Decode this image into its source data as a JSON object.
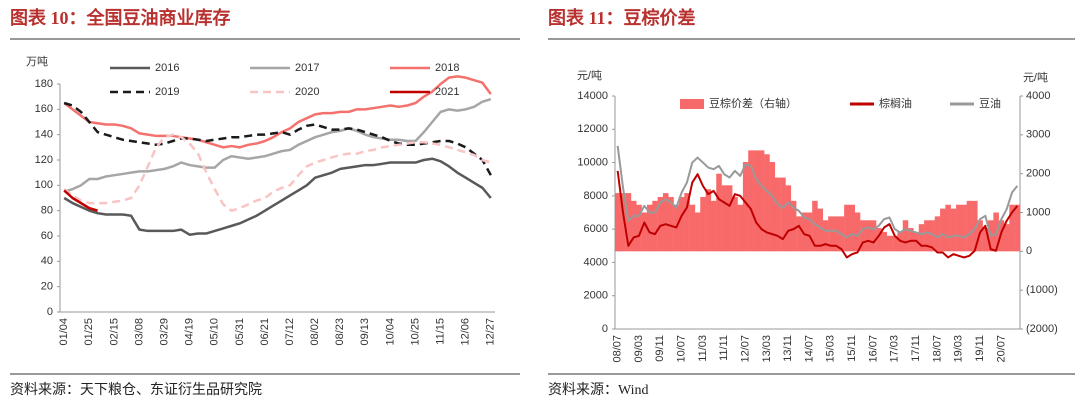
{
  "chart_data": [
    {
      "type": "line",
      "title": "图表 10：全国豆油商业库存",
      "y_label": "万吨",
      "source": "资料来源：天下粮仓、东证衍生品研究院",
      "categories": [
        "01/04",
        null,
        null,
        "01/25",
        null,
        null,
        "02/15",
        null,
        null,
        "03/08",
        null,
        null,
        "03/29",
        null,
        null,
        "04/19",
        null,
        null,
        "05/10",
        null,
        null,
        "05/31",
        null,
        null,
        "06/21",
        null,
        null,
        "07/12",
        null,
        null,
        "08/02",
        null,
        null,
        "08/23",
        null,
        null,
        "09/13",
        null,
        null,
        "10/04",
        null,
        null,
        "10/25",
        null,
        null,
        "11/15",
        null,
        null,
        "12/06",
        null,
        null,
        "12/27"
      ],
      "ylim": [
        0,
        180
      ],
      "yticks": [
        0,
        20,
        40,
        60,
        80,
        100,
        120,
        140,
        160,
        180
      ],
      "grid": false,
      "series": [
        {
          "name": "2016",
          "color": "#595959",
          "dash": false,
          "values": [
            90,
            86,
            83,
            80,
            78,
            77,
            77,
            77,
            76,
            65,
            64,
            64,
            64,
            64,
            65,
            61,
            62,
            62,
            64,
            66,
            68,
            70,
            73,
            76,
            80,
            84,
            88,
            92,
            96,
            100,
            106,
            108,
            110,
            113,
            114,
            115,
            116,
            116,
            117,
            118,
            118,
            118,
            118,
            120,
            121,
            119,
            115,
            110,
            106,
            102,
            98,
            90
          ]
        },
        {
          "name": "2017",
          "color": "#a6a6a6",
          "dash": false,
          "values": [
            95,
            97,
            100,
            105,
            105,
            107,
            108,
            109,
            110,
            111,
            111,
            112,
            113,
            115,
            118,
            116,
            115,
            114,
            114,
            120,
            123,
            122,
            121,
            122,
            123,
            125,
            127,
            128,
            132,
            135,
            138,
            140,
            142,
            143,
            145,
            143,
            140,
            138,
            137,
            136,
            136,
            135,
            135,
            142,
            150,
            158,
            160,
            159,
            160,
            162,
            166,
            168
          ]
        },
        {
          "name": "2018",
          "color": "#f4716d",
          "dash": false,
          "values": [
            165,
            160,
            155,
            150,
            149,
            148,
            148,
            147,
            145,
            141,
            140,
            139,
            139,
            139,
            138,
            137,
            136,
            134,
            132,
            130,
            131,
            130,
            132,
            133,
            135,
            138,
            142,
            145,
            150,
            153,
            156,
            157,
            157,
            158,
            158,
            160,
            160,
            161,
            162,
            163,
            162,
            163,
            165,
            170,
            174,
            180,
            185,
            186,
            185,
            183,
            181,
            172
          ]
        },
        {
          "name": "2019",
          "color": "#1a1a1a",
          "dash": true,
          "values": [
            165,
            163,
            158,
            150,
            142,
            140,
            138,
            136,
            135,
            134,
            133,
            132,
            133,
            135,
            137,
            137,
            136,
            135,
            136,
            137,
            138,
            138,
            139,
            140,
            140,
            141,
            142,
            140,
            144,
            147,
            148,
            146,
            144,
            144,
            145,
            144,
            142,
            140,
            138,
            135,
            133,
            132,
            132,
            133,
            134,
            135,
            135,
            133,
            130,
            125,
            120,
            108
          ]
        },
        {
          "name": "2020",
          "color": "#f8c4c4",
          "dash": true,
          "values": [
            97,
            92,
            88,
            86,
            86,
            86,
            87,
            88,
            90,
            100,
            115,
            130,
            138,
            140,
            138,
            133,
            125,
            110,
            97,
            85,
            80,
            82,
            85,
            88,
            90,
            95,
            98,
            100,
            108,
            115,
            118,
            120,
            122,
            124,
            125,
            125,
            127,
            128,
            130,
            131,
            132,
            133,
            134,
            134,
            133,
            132,
            130,
            128,
            126,
            124,
            120,
            118
          ]
        },
        {
          "name": "2021",
          "color": "#c00000",
          "dash": false,
          "values": [
            96,
            90,
            86,
            82,
            80,
            null,
            null,
            null,
            null,
            null,
            null,
            null,
            null,
            null,
            null,
            null,
            null,
            null,
            null,
            null,
            null,
            null,
            null,
            null,
            null,
            null,
            null,
            null,
            null,
            null,
            null,
            null,
            null,
            null,
            null,
            null,
            null,
            null,
            null,
            null,
            null,
            null,
            null,
            null,
            null,
            null,
            null,
            null,
            null,
            null,
            null,
            null
          ]
        }
      ]
    },
    {
      "type": "combo",
      "title": "图表 11：豆棕价差",
      "y_label": "元/吨",
      "y2_label": "元/吨",
      "source": "资料来源：Wind",
      "categories": [
        "08/07",
        null,
        null,
        null,
        "09/03",
        null,
        null,
        null,
        "09/11",
        null,
        null,
        null,
        "10/07",
        null,
        null,
        null,
        "11/03",
        null,
        null,
        null,
        "11/11",
        null,
        null,
        null,
        "12/07",
        null,
        null,
        null,
        "13/03",
        null,
        null,
        null,
        "13/11",
        null,
        null,
        null,
        "14/07",
        null,
        null,
        null,
        "15/03",
        null,
        null,
        null,
        "15/11",
        null,
        null,
        null,
        "16/07",
        null,
        null,
        null,
        "17/03",
        null,
        null,
        null,
        "17/11",
        null,
        null,
        null,
        "18/07",
        null,
        null,
        null,
        "19/03",
        null,
        null,
        null,
        "19/11",
        null,
        null,
        null,
        "20/07",
        null,
        null,
        null
      ],
      "ylim": [
        0,
        14000
      ],
      "yticks": [
        0,
        2000,
        4000,
        6000,
        8000,
        10000,
        12000,
        14000
      ],
      "y2lim": [
        -2000,
        4000
      ],
      "y2ticks": [
        {
          "value": -2000,
          "label": "(2000)"
        },
        {
          "value": -1000,
          "label": "(1000)"
        },
        0,
        1000,
        2000,
        3000,
        4000
      ],
      "grid": false,
      "series": [
        {
          "name": "豆棕价差（右轴）",
          "type": "bar",
          "axis": "y2",
          "color": "#f86a6a",
          "values": [
            1500,
            1500,
            1500,
            1300,
            1200,
            1000,
            1200,
            1300,
            1400,
            1500,
            1400,
            1200,
            1400,
            1500,
            1200,
            1000,
            1400,
            1600,
            1300,
            2000,
            1700,
            1700,
            1400,
            1200,
            2300,
            2600,
            2600,
            2600,
            2500,
            2300,
            1900,
            1900,
            1700,
            1300,
            900,
            1000,
            1000,
            1300,
            1100,
            800,
            900,
            900,
            900,
            1200,
            1200,
            1000,
            800,
            800,
            800,
            600,
            500,
            400,
            400,
            500,
            800,
            600,
            500,
            700,
            800,
            800,
            900,
            1100,
            1200,
            1100,
            1200,
            1200,
            1300,
            1300,
            800,
            600,
            800,
            1000,
            800,
            700,
            1200,
            1200
          ]
        },
        {
          "name": "棕榈油",
          "type": "line",
          "color": "#c00000",
          "values": [
            9500,
            7000,
            5000,
            5500,
            5600,
            6400,
            5800,
            5700,
            6200,
            6300,
            6200,
            6100,
            6800,
            7300,
            8800,
            9300,
            8600,
            8100,
            8300,
            7800,
            7600,
            7400,
            8100,
            8000,
            7600,
            7200,
            6400,
            6000,
            5800,
            5700,
            5600,
            5400,
            5900,
            6000,
            6200,
            5700,
            5600,
            5000,
            5000,
            5100,
            5000,
            5000,
            4800,
            4300,
            4500,
            4600,
            5200,
            5300,
            5200,
            5600,
            6100,
            6300,
            5600,
            5300,
            5200,
            5300,
            5300,
            5000,
            5000,
            4900,
            4600,
            4600,
            4300,
            4500,
            4400,
            4300,
            4400,
            4700,
            5800,
            6200,
            4800,
            4700,
            5800,
            6500,
            7000,
            7400
          ]
        },
        {
          "name": "豆油",
          "type": "line",
          "color": "#999999",
          "values": [
            11000,
            8500,
            6500,
            6800,
            6800,
            7400,
            7000,
            7000,
            7600,
            7800,
            7600,
            7300,
            8200,
            8800,
            10000,
            10300,
            10000,
            9700,
            9600,
            9800,
            9300,
            9100,
            9500,
            9200,
            9900,
            9800,
            9000,
            8600,
            8300,
            8000,
            7500,
            7300,
            7600,
            7300,
            7100,
            6700,
            6600,
            6300,
            6100,
            5900,
            5900,
            5900,
            5700,
            5500,
            5700,
            5600,
            6000,
            6100,
            6000,
            6200,
            6600,
            6700,
            6000,
            5800,
            6000,
            5900,
            5800,
            5700,
            5800,
            5700,
            5500,
            5700,
            5500,
            5600,
            5600,
            5500,
            5700,
            6000,
            6600,
            6800,
            5600,
            5700,
            6600,
            7200,
            8200,
            8600
          ]
        }
      ]
    }
  ]
}
